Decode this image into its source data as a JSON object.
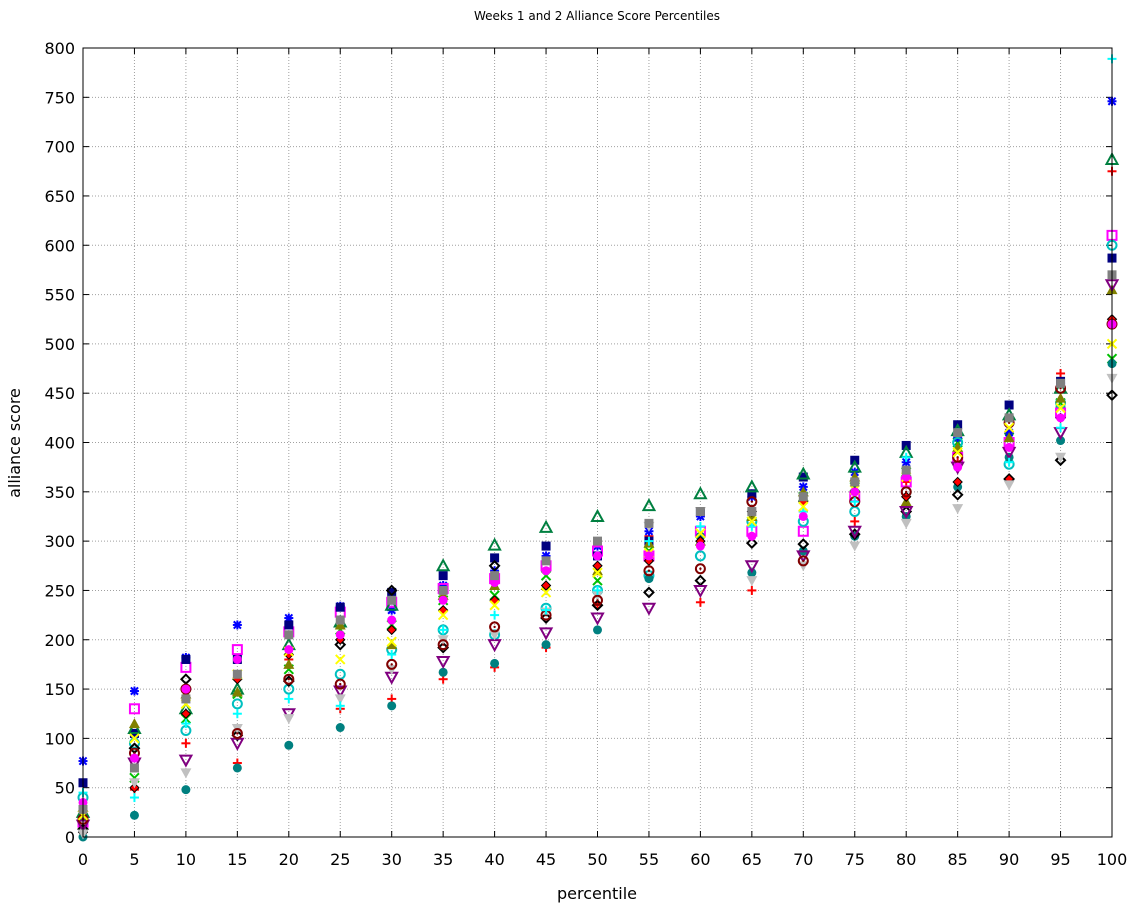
{
  "chart_data": {
    "type": "scatter",
    "title": "Weeks 1 and 2 Alliance Score Percentiles",
    "xlabel": "percentile",
    "ylabel": "alliance score",
    "xlim": [
      0,
      100
    ],
    "ylim": [
      0,
      800
    ],
    "xticks": [
      0,
      5,
      10,
      15,
      20,
      25,
      30,
      35,
      40,
      45,
      50,
      55,
      60,
      65,
      70,
      75,
      80,
      85,
      90,
      95,
      100
    ],
    "yticks": [
      0,
      50,
      100,
      150,
      200,
      250,
      300,
      350,
      400,
      450,
      500,
      550,
      600,
      650,
      700,
      750,
      800
    ],
    "grid": true,
    "legend": "none",
    "series": [
      {
        "marker": "plus",
        "color": "#ff0000",
        "x": [
          0,
          5,
          10,
          15,
          20,
          25,
          30,
          35,
          40,
          45,
          50,
          55,
          60,
          65,
          70,
          75,
          80,
          85,
          90,
          95,
          100
        ],
        "y": [
          10,
          48,
          95,
          75,
          180,
          130,
          140,
          160,
          172,
          192,
          235,
          305,
          238,
          250,
          330,
          320,
          360,
          380,
          410,
          470,
          675
        ]
      },
      {
        "marker": "x",
        "color": "#00c000",
        "x": [
          0,
          5,
          10,
          15,
          20,
          25,
          30,
          35,
          40,
          45,
          50,
          55,
          60,
          65,
          70,
          75,
          80,
          85,
          90,
          95,
          100
        ],
        "y": [
          20,
          60,
          120,
          145,
          170,
          210,
          215,
          240,
          245,
          265,
          260,
          290,
          300,
          320,
          345,
          355,
          370,
          400,
          405,
          440,
          485
        ]
      },
      {
        "marker": "star",
        "color": "#0000ff",
        "x": [
          0,
          5,
          10,
          15,
          20,
          25,
          30,
          35,
          40,
          45,
          50,
          55,
          60,
          65,
          70,
          75,
          80,
          85,
          90,
          95,
          100
        ],
        "y": [
          77,
          148,
          182,
          215,
          222,
          234,
          230,
          255,
          270,
          285,
          295,
          310,
          325,
          345,
          355,
          370,
          380,
          405,
          410,
          460,
          746
        ]
      },
      {
        "marker": "square-open",
        "color": "#ff00ff",
        "x": [
          0,
          5,
          10,
          15,
          20,
          25,
          30,
          35,
          40,
          45,
          50,
          55,
          60,
          65,
          70,
          75,
          80,
          85,
          90,
          95,
          100
        ],
        "y": [
          15,
          130,
          172,
          190,
          208,
          228,
          238,
          252,
          262,
          275,
          290,
          285,
          310,
          310,
          310,
          345,
          360,
          385,
          400,
          430,
          610
        ]
      },
      {
        "marker": "square",
        "color": "#000080",
        "x": [
          0,
          5,
          10,
          15,
          20,
          25,
          30,
          35,
          40,
          45,
          50,
          55,
          60,
          65,
          70,
          75,
          80,
          85,
          90,
          95,
          100
        ],
        "y": [
          55,
          105,
          180,
          180,
          215,
          233,
          248,
          265,
          283,
          295,
          285,
          300,
          330,
          348,
          365,
          382,
          397,
          418,
          438,
          462,
          587
        ]
      },
      {
        "marker": "circle-open",
        "color": "#00c0c0",
        "x": [
          0,
          5,
          10,
          15,
          20,
          25,
          30,
          35,
          40,
          45,
          50,
          55,
          60,
          65,
          70,
          75,
          80,
          85,
          90,
          95,
          100
        ],
        "y": [
          40,
          95,
          108,
          135,
          150,
          165,
          190,
          210,
          205,
          232,
          250,
          265,
          285,
          320,
          320,
          330,
          350,
          400,
          378,
          440,
          600
        ]
      },
      {
        "marker": "circle",
        "color": "#008080",
        "x": [
          0,
          5,
          10,
          15,
          20,
          25,
          30,
          35,
          40,
          45,
          50,
          55,
          60,
          65,
          70,
          75,
          80,
          85,
          90,
          95,
          100
        ],
        "y": [
          0,
          22,
          48,
          70,
          93,
          111,
          133,
          167,
          176,
          195,
          210,
          262,
          305,
          268,
          290,
          305,
          325,
          355,
          385,
          402,
          480
        ]
      },
      {
        "marker": "triangle-open",
        "color": "#008040",
        "x": [
          0,
          5,
          10,
          15,
          20,
          25,
          30,
          35,
          40,
          45,
          50,
          55,
          60,
          65,
          70,
          75,
          80,
          85,
          90,
          95,
          100
        ],
        "y": [
          25,
          110,
          130,
          150,
          195,
          218,
          235,
          275,
          296,
          314,
          325,
          336,
          348,
          355,
          368,
          375,
          390,
          412,
          428,
          455,
          687
        ]
      },
      {
        "marker": "triangle",
        "color": "#808000",
        "x": [
          0,
          5,
          10,
          15,
          20,
          25,
          30,
          35,
          40,
          45,
          50,
          55,
          60,
          65,
          70,
          75,
          80,
          85,
          90,
          95,
          100
        ],
        "y": [
          30,
          115,
          145,
          147,
          175,
          215,
          195,
          245,
          255,
          255,
          270,
          298,
          300,
          325,
          350,
          365,
          340,
          395,
          405,
          445,
          555
        ]
      },
      {
        "marker": "diamond-open",
        "color": "#000000",
        "x": [
          0,
          5,
          10,
          15,
          20,
          25,
          30,
          35,
          40,
          45,
          50,
          55,
          60,
          65,
          70,
          75,
          80,
          85,
          90,
          95,
          100
        ],
        "y": [
          8,
          90,
          160,
          103,
          158,
          195,
          250,
          192,
          275,
          222,
          235,
          248,
          260,
          298,
          297,
          307,
          330,
          347,
          363,
          382,
          448
        ]
      },
      {
        "marker": "diamond",
        "color": "#ff0000",
        "x": [
          0,
          5,
          10,
          15,
          20,
          25,
          30,
          35,
          40,
          45,
          50,
          55,
          60,
          65,
          70,
          75,
          80,
          85,
          90,
          95,
          100
        ],
        "y": [
          5,
          50,
          125,
          160,
          185,
          200,
          210,
          230,
          240,
          255,
          275,
          280,
          300,
          330,
          340,
          350,
          345,
          360,
          363,
          425,
          525
        ]
      },
      {
        "marker": "triangle-down-open",
        "color": "#800080",
        "x": [
          0,
          5,
          10,
          15,
          20,
          25,
          30,
          35,
          40,
          45,
          50,
          55,
          60,
          65,
          70,
          75,
          80,
          85,
          90,
          95,
          100
        ],
        "y": [
          12,
          75,
          78,
          95,
          125,
          148,
          162,
          178,
          195,
          207,
          222,
          232,
          250,
          275,
          285,
          310,
          330,
          375,
          390,
          410,
          560
        ]
      },
      {
        "marker": "triangle-down",
        "color": "#c0c0c0",
        "x": [
          0,
          5,
          10,
          15,
          20,
          25,
          30,
          35,
          40,
          45,
          50,
          55,
          60,
          65,
          70,
          75,
          80,
          85,
          90,
          95,
          100
        ],
        "y": [
          3,
          55,
          65,
          110,
          120,
          140,
          170,
          200,
          205,
          228,
          245,
          315,
          330,
          260,
          275,
          295,
          318,
          333,
          357,
          385,
          465
        ]
      },
      {
        "marker": "circle-dot",
        "color": "#800000",
        "x": [
          0,
          5,
          10,
          15,
          20,
          25,
          30,
          35,
          40,
          45,
          50,
          55,
          60,
          65,
          70,
          75,
          80,
          85,
          90,
          95,
          100
        ],
        "y": [
          18,
          85,
          150,
          105,
          160,
          155,
          175,
          195,
          213,
          225,
          240,
          270,
          272,
          340,
          280,
          340,
          350,
          385,
          420,
          455,
          520
        ]
      },
      {
        "marker": "plus",
        "color": "#00ffff",
        "x": [
          0,
          5,
          10,
          15,
          20,
          25,
          30,
          35,
          40,
          45,
          50,
          55,
          60,
          65,
          70,
          75,
          80,
          85,
          90,
          95,
          100
        ],
        "y": [
          45,
          40,
          115,
          125,
          140,
          133,
          185,
          210,
          225,
          230,
          250,
          300,
          315,
          315,
          330,
          340,
          385,
          410,
          380,
          415,
          789
        ]
      },
      {
        "marker": "x",
        "color": "#ffff00",
        "x": [
          0,
          5,
          10,
          15,
          20,
          25,
          30,
          35,
          40,
          45,
          50,
          55,
          60,
          65,
          70,
          75,
          80,
          85,
          90,
          95,
          100
        ],
        "y": [
          22,
          100,
          135,
          165,
          188,
          180,
          198,
          225,
          235,
          248,
          268,
          288,
          308,
          320,
          335,
          352,
          365,
          390,
          415,
          435,
          500
        ]
      },
      {
        "marker": "circle",
        "color": "#ff00ff",
        "x": [
          0,
          5,
          10,
          15,
          20,
          25,
          30,
          35,
          40,
          45,
          50,
          55,
          60,
          65,
          70,
          75,
          80,
          85,
          90,
          95,
          100
        ],
        "y": [
          35,
          80,
          150,
          180,
          190,
          205,
          220,
          240,
          258,
          270,
          285,
          285,
          295,
          305,
          325,
          350,
          365,
          375,
          395,
          425,
          520
        ]
      },
      {
        "marker": "square",
        "color": "#808080",
        "x": [
          0,
          5,
          10,
          15,
          20,
          25,
          30,
          35,
          40,
          45,
          50,
          55,
          60,
          65,
          70,
          75,
          80,
          85,
          90,
          95,
          100
        ],
        "y": [
          28,
          70,
          140,
          165,
          205,
          220,
          240,
          250,
          265,
          280,
          300,
          318,
          330,
          330,
          345,
          360,
          372,
          410,
          425,
          460,
          570
        ]
      }
    ]
  }
}
